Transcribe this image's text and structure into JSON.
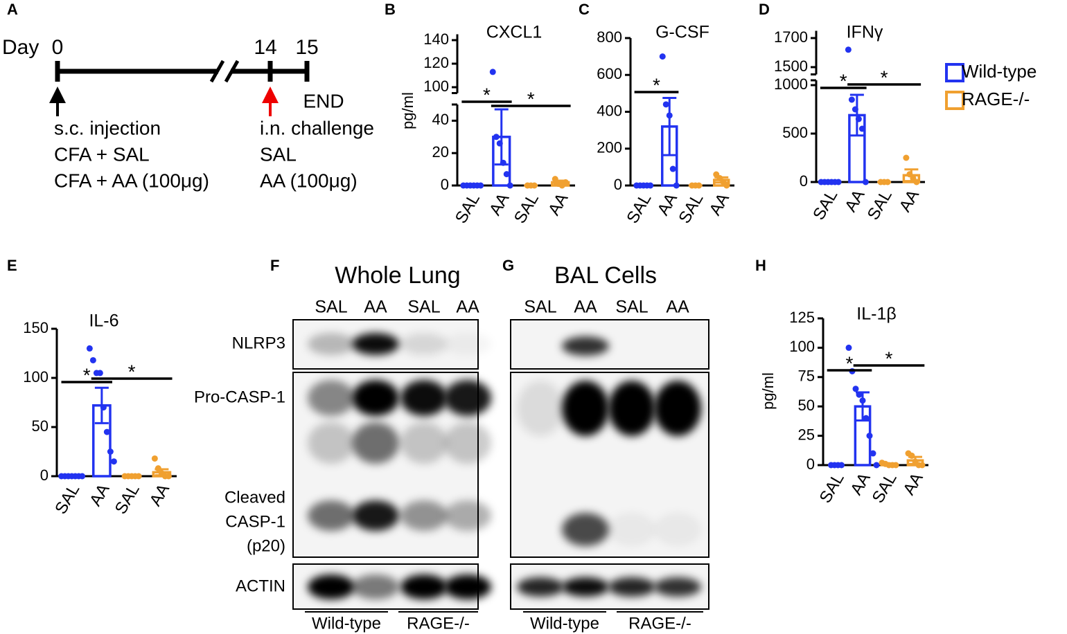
{
  "panel_labels": [
    "A",
    "B",
    "C",
    "D",
    "E",
    "F",
    "G",
    "H"
  ],
  "timeline": {
    "day_label": "Day",
    "days": [
      0,
      14,
      15
    ],
    "end": "END",
    "left_text": [
      "s.c. injection",
      "CFA + SAL",
      "CFA + AA (100μg)"
    ],
    "right_text": [
      "i.n. challenge",
      "SAL",
      "AA (100μg)"
    ]
  },
  "legend": [
    {
      "name": "Wild-type",
      "color": "#2233f0"
    },
    {
      "name": "RAGE-/-",
      "color": "#f0a030"
    }
  ],
  "chart_data": [
    {
      "type": "bar",
      "title": "CXCL1",
      "y_label": "pg/ml",
      "categories": [
        "SAL",
        "AA",
        "SAL",
        "AA"
      ],
      "colors": [
        "#2233f0",
        "#2233f0",
        "#f0a030",
        "#f0a030"
      ],
      "values": [
        0,
        30,
        0,
        2
      ],
      "errors": [
        0,
        17,
        0,
        1
      ],
      "points": [
        [
          0,
          0,
          0,
          0,
          0,
          0
        ],
        [
          113,
          30,
          26,
          14,
          7,
          0
        ],
        [
          0,
          0,
          0
        ],
        [
          4,
          1,
          0,
          2
        ]
      ],
      "ylim": [
        0,
        50
      ],
      "yticks": [
        0,
        20,
        40
      ],
      "ylim_upper": [
        95,
        145
      ],
      "yticks_upper": [
        100,
        120,
        140
      ],
      "brackets": [
        {
          "categories": [
            0,
            1
          ],
          "label": "*"
        },
        {
          "categories": [
            1,
            3
          ],
          "label": "*"
        }
      ]
    },
    {
      "type": "bar",
      "title": "G-CSF",
      "categories": [
        "SAL",
        "AA",
        "SAL",
        "AA"
      ],
      "colors": [
        "#2233f0",
        "#2233f0",
        "#f0a030",
        "#f0a030"
      ],
      "values": [
        0,
        320,
        0,
        30
      ],
      "errors": [
        0,
        155,
        0,
        14
      ],
      "points": [
        [
          0,
          0,
          0,
          0,
          0
        ],
        [
          700,
          440,
          380,
          90,
          0
        ],
        [
          0,
          0,
          0
        ],
        [
          60,
          40,
          20,
          0
        ]
      ],
      "ylim": [
        0,
        800
      ],
      "yticks": [
        0,
        200,
        400,
        600,
        800
      ],
      "brackets": [
        {
          "categories": [
            0,
            1
          ],
          "label": "*"
        }
      ]
    },
    {
      "type": "bar",
      "title": "IFNγ",
      "categories": [
        "SAL",
        "AA",
        "SAL",
        "AA"
      ],
      "colors": [
        "#2233f0",
        "#2233f0",
        "#f0a030",
        "#f0a030"
      ],
      "values": [
        0,
        690,
        0,
        70
      ],
      "errors": [
        0,
        210,
        0,
        60
      ],
      "points": [
        [
          0,
          0,
          0,
          0,
          0,
          0
        ],
        [
          1620,
          850,
          750,
          650,
          550,
          0
        ],
        [
          0,
          0,
          0
        ],
        [
          250,
          80,
          40,
          0
        ]
      ],
      "ylim": [
        0,
        1050
      ],
      "yticks": [
        0,
        500,
        1000
      ],
      "ylim_upper": [
        1450,
        1750
      ],
      "yticks_upper": [
        1500,
        1700
      ],
      "brackets": [
        {
          "categories": [
            0,
            1
          ],
          "label": "*"
        },
        {
          "categories": [
            1,
            3
          ],
          "label": "*"
        }
      ]
    },
    {
      "type": "bar",
      "title": "IL-6",
      "categories": [
        "SAL",
        "AA",
        "SAL",
        "AA"
      ],
      "colors": [
        "#2233f0",
        "#2233f0",
        "#f0a030",
        "#f0a030"
      ],
      "values": [
        0,
        72,
        0,
        4
      ],
      "errors": [
        0,
        18,
        0,
        3
      ],
      "points": [
        [
          0,
          0,
          0,
          0,
          0,
          0,
          0
        ],
        [
          130,
          118,
          105,
          105,
          70,
          45,
          25,
          15
        ],
        [
          0,
          0,
          0,
          0,
          0
        ],
        [
          18,
          8,
          3,
          0,
          0
        ]
      ],
      "ylim": [
        0,
        150
      ],
      "yticks": [
        0,
        50,
        100,
        150
      ],
      "brackets": [
        {
          "categories": [
            0,
            1
          ],
          "label": "*"
        },
        {
          "categories": [
            1,
            3
          ],
          "label": "*"
        }
      ]
    },
    {
      "type": "bar",
      "title": "IL-1β",
      "y_label": "pg/ml",
      "categories": [
        "SAL",
        "AA",
        "SAL",
        "AA"
      ],
      "colors": [
        "#2233f0",
        "#2233f0",
        "#f0a030",
        "#f0a030"
      ],
      "values": [
        0,
        50,
        1,
        4
      ],
      "errors": [
        0,
        12,
        0.5,
        3
      ],
      "points": [
        [
          0,
          0,
          0,
          0
        ],
        [
          100,
          80,
          65,
          60,
          55,
          40,
          25,
          10,
          0
        ],
        [
          2,
          1,
          0,
          0,
          0
        ],
        [
          10,
          8,
          3,
          0,
          0
        ]
      ],
      "ylim": [
        0,
        125
      ],
      "yticks": [
        0,
        25,
        50,
        75,
        100,
        125
      ],
      "brackets": [
        {
          "categories": [
            0,
            1
          ],
          "label": "*"
        },
        {
          "categories": [
            1,
            3
          ],
          "label": "*"
        }
      ]
    }
  ],
  "blots": {
    "row_labels": [
      "NLRP3",
      "Pro-CASP-1",
      "Cleaved",
      "CASP-1",
      "(p20)",
      "ACTIN"
    ],
    "panels": [
      {
        "title": "Whole Lung",
        "lanes": [
          "SAL",
          "AA",
          "SAL",
          "AA"
        ],
        "groups": [
          "Wild-type",
          "RAGE-/-"
        ]
      },
      {
        "title": "BAL Cells",
        "lanes": [
          "SAL",
          "AA",
          "SAL",
          "AA"
        ],
        "groups": [
          "Wild-type",
          "RAGE-/-"
        ]
      }
    ]
  }
}
